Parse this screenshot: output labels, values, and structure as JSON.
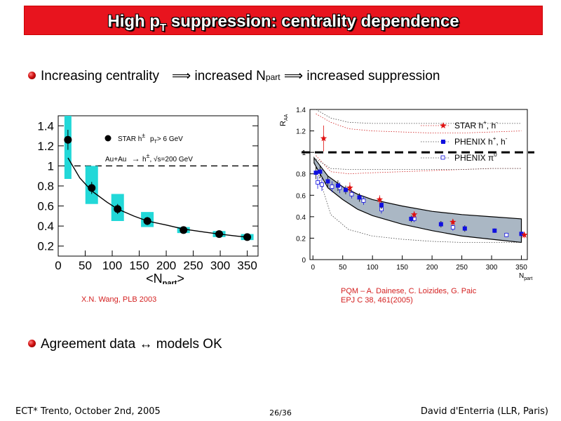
{
  "slide": {
    "title_main": "High p",
    "title_sub": "T",
    "title_rest": " suppression: centrality dependence",
    "bullet1": {
      "text_a": "Increasing centrality",
      "arrow1": "⟹",
      "text_b": "increased N",
      "sub": "part",
      "arrow2": "⟹",
      "text_c": "increased suppression"
    },
    "bullet2": {
      "text_a": "Agreement data",
      "arrow": "↔",
      "text_b": "models OK"
    },
    "ref_left": "X.N. Wang, PLB 2003",
    "ref_right_1": "PQM – A. Dainese, C. Loizides, G. Paic",
    "ref_right_2": "EPJ C 38, 461(2005)",
    "footer_left": "ECT* Trento, October 2nd, 2005",
    "footer_center": "26/36",
    "footer_right": "David d'Enterria (LLR, Paris)"
  },
  "chart_data": [
    {
      "type": "scatter",
      "xlim": [
        0,
        370
      ],
      "ylim": [
        0.1,
        1.5
      ],
      "xticks": [
        "0",
        "50",
        "100",
        "150",
        "200",
        "250",
        "300",
        "350"
      ],
      "yticks": [
        "0.2",
        "0.4",
        "0.6",
        "0.8",
        "1",
        "1.2",
        "1.4"
      ],
      "xlabel": "<N",
      "xlabel_sub": "part",
      "xlabel_end": ">",
      "legend": {
        "line1_a": "STAR h",
        "line1_sup": "±",
        "line1_b": "p",
        "line1_sub": "T",
        "line1_c": "> 6 GeV",
        "line2_a": "Au+Au",
        "line2_arrow": "→",
        "line2_b": "h",
        "line2_sup": "±",
        "line2_c": ", √s=200 GeV"
      },
      "series": [
        {
          "name": "STAR h±",
          "x": [
            18,
            62,
            110,
            165,
            232,
            298,
            350
          ],
          "y": [
            1.26,
            0.78,
            0.57,
            0.45,
            0.36,
            0.32,
            0.29
          ],
          "box_low": [
            0.87,
            0.62,
            0.45,
            0.39,
            0.33,
            0.29,
            0.26
          ],
          "box_high": [
            1.5,
            1.0,
            0.72,
            0.54,
            0.39,
            0.35,
            0.32
          ],
          "err": [
            0.1,
            0.06,
            0.05,
            0.04,
            0.03,
            0.03,
            0.02
          ]
        }
      ],
      "model_curve": {
        "x": [
          18,
          40,
          62,
          90,
          110,
          140,
          165,
          200,
          232,
          270,
          298,
          330,
          350
        ],
        "y": [
          1.08,
          0.88,
          0.75,
          0.64,
          0.57,
          0.5,
          0.45,
          0.41,
          0.37,
          0.34,
          0.32,
          0.3,
          0.29
        ]
      },
      "reference_line": 1.0,
      "colors": {
        "box": "#22d8d8",
        "marker": "#000000"
      }
    },
    {
      "type": "scatter",
      "xlim": [
        -5,
        360
      ],
      "ylim": [
        0,
        1.4
      ],
      "xticks": [
        "0",
        "50",
        "100",
        "150",
        "200",
        "250",
        "300",
        "350"
      ],
      "yticks": [
        "0",
        "0.2",
        "0.4",
        "0.6",
        "0.8",
        "1",
        "1.2",
        "1.4"
      ],
      "ylabel": "R",
      "ylabel_sub": "AA",
      "xlabel": "N",
      "xlabel_sub": "part",
      "legend": [
        {
          "name": "STAR",
          "label_a": "STAR  h",
          "sup": "+",
          "label_b": ", h",
          "sup2": "-",
          "color": "#e01010",
          "marker": "star"
        },
        {
          "name": "PHENIX h",
          "label_a": "PHENIX  h",
          "sup": "+",
          "label_b": ", h",
          "sup2": "-",
          "color": "#1010e0",
          "marker": "square"
        },
        {
          "name": "PHENIX pi0",
          "label_a": "PHENIX  π",
          "sup": "0",
          "label_b": "",
          "sup2": "",
          "color": "#1010e0",
          "marker": "open-square"
        }
      ],
      "series": [
        {
          "name": "STAR h+,h-",
          "x": [
            18,
            62,
            112,
            170,
            235,
            355
          ],
          "y": [
            1.13,
            0.67,
            0.56,
            0.42,
            0.35,
            0.23
          ],
          "err": [
            0.12,
            0.05,
            0.04,
            0.03,
            0.03,
            0.03
          ]
        },
        {
          "name": "PHENIX h+,h-",
          "x": [
            5,
            12,
            25,
            42,
            55,
            78,
            115,
            165,
            215,
            255,
            305,
            350
          ],
          "y": [
            0.81,
            0.82,
            0.73,
            0.69,
            0.65,
            0.58,
            0.51,
            0.38,
            0.33,
            0.29,
            0.27,
            0.24
          ],
          "err": [
            0.06,
            0.06,
            0.05,
            0.05,
            0.04,
            0.04,
            0.04,
            0.03,
            0.03,
            0.03,
            0.02,
            0.02
          ]
        },
        {
          "name": "PHENIX pi0",
          "x": [
            8,
            15,
            32,
            45,
            65,
            85,
            115,
            170,
            235,
            325
          ],
          "y": [
            0.72,
            0.7,
            0.68,
            0.67,
            0.61,
            0.55,
            0.47,
            0.38,
            0.3,
            0.23
          ],
          "err": [
            0.06,
            0.06,
            0.05,
            0.05,
            0.04,
            0.04,
            0.04,
            0.03,
            0.03,
            0.02
          ]
        }
      ],
      "band": {
        "x": [
          2,
          25,
          50,
          75,
          100,
          150,
          200,
          250,
          300,
          350
        ],
        "upper": [
          0.95,
          0.78,
          0.68,
          0.61,
          0.56,
          0.5,
          0.45,
          0.42,
          0.4,
          0.38
        ],
        "lower": [
          0.9,
          0.67,
          0.56,
          0.47,
          0.41,
          0.33,
          0.27,
          0.22,
          0.19,
          0.16
        ]
      },
      "dotted_black_upper": {
        "x": [
          2,
          30,
          60,
          100,
          150,
          200,
          250,
          300,
          350
        ],
        "y": [
          0.95,
          0.85,
          0.84,
          0.84,
          0.84,
          0.84,
          0.84,
          0.85,
          0.85
        ]
      },
      "dotted_black_lower": {
        "x": [
          2,
          30,
          60,
          100,
          150,
          200,
          250,
          300,
          350
        ],
        "y": [
          0.92,
          0.42,
          0.28,
          0.22,
          0.19,
          0.17,
          0.16,
          0.16,
          0.16
        ]
      },
      "dotted_red_upper": {
        "x": [
          5,
          30,
          60,
          100,
          150,
          200,
          250,
          300,
          350
        ],
        "y": [
          1.36,
          1.28,
          1.22,
          1.2,
          1.19,
          1.18,
          1.18,
          1.19,
          1.2
        ]
      },
      "dotted_red_lower": {
        "x": [
          5,
          30,
          60,
          100,
          150,
          200,
          250,
          300,
          350
        ],
        "y": [
          0.97,
          0.82,
          0.8,
          0.81,
          0.82,
          0.83,
          0.84,
          0.85,
          0.85
        ]
      },
      "dotted_black_top": {
        "x": [
          5,
          30,
          60,
          100,
          150,
          200,
          250,
          300,
          350
        ],
        "y": [
          1.4,
          1.32,
          1.28,
          1.27,
          1.27,
          1.27,
          1.27,
          1.27,
          1.27
        ]
      },
      "reference_line": 1.0,
      "colors": {
        "band": "#aab7c4",
        "star": "#e01010",
        "phenix": "#1010e0"
      }
    }
  ]
}
